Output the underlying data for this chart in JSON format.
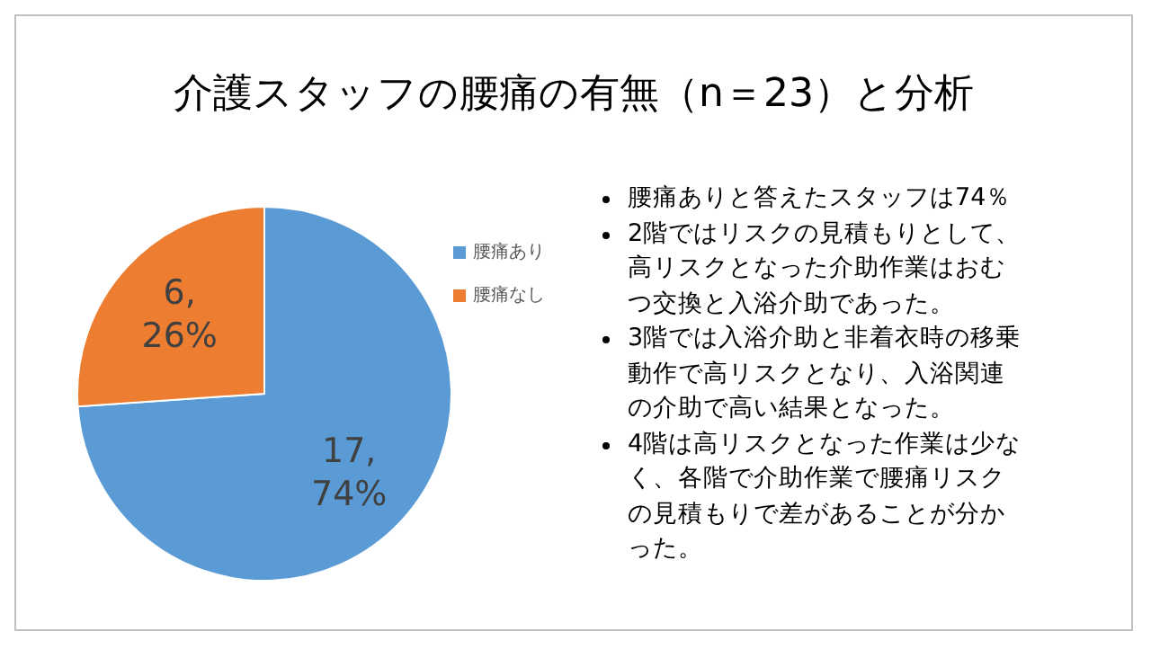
{
  "chart_data": {
    "type": "pie",
    "title": "介護スタッフの腰痛の有無（n＝23）と分析",
    "categories": [
      "腰痛あり",
      "腰痛なし"
    ],
    "values": [
      17,
      6
    ],
    "colors": [
      "#5b9bd5",
      "#ed7d31"
    ],
    "value_labels": [
      "17,\n74%",
      "6,\n26%"
    ],
    "legend": "right",
    "annotations": [
      "腰痛ありと答えたスタッフは74％",
      "2階ではリスクの見積もりとして、高リスクとなった介助作業はおむつ交換と入浴介助であった。",
      "3階では入浴介助と非着衣時の移乗動作で高リスクとなり、入浴関連の介助で高い結果となった。",
      "4階は高リスクとなった作業は少なく、各階で介助作業で腰痛リスクの見積もりで差があることが分かった。"
    ]
  }
}
